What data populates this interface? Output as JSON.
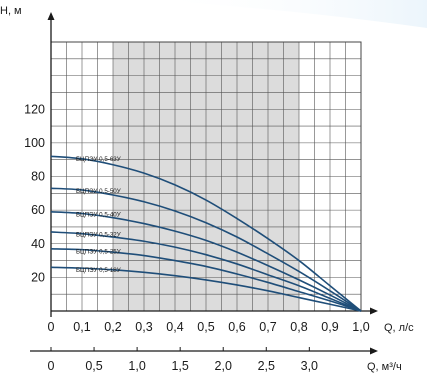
{
  "chart_data": {
    "type": "line",
    "ylabel": "H, м",
    "xlabel": "Q, л/с",
    "x2label": "Q, м³/ч",
    "xlim": [
      0,
      1.0
    ],
    "ylim": [
      0,
      160
    ],
    "x_ticks": [
      "0",
      "0,1",
      "0,2",
      "0,3",
      "0,4",
      "0,5",
      "0,6",
      "0,7",
      "0,8",
      "0,9",
      "1,0"
    ],
    "x_tick_values": [
      0,
      0.1,
      0.2,
      0.3,
      0.4,
      0.5,
      0.6,
      0.7,
      0.8,
      0.9,
      1.0
    ],
    "y_ticks": [
      "20",
      "40",
      "60",
      "80",
      "100",
      "120"
    ],
    "y_tick_values": [
      20,
      40,
      60,
      80,
      100,
      120
    ],
    "x2_ticks": [
      "0",
      "0,5",
      "1,0",
      "1,5",
      "2,0",
      "2,5",
      "3,0"
    ],
    "x2_tick_values": [
      0,
      0.5,
      1.0,
      1.5,
      2.0,
      2.5,
      3.0
    ],
    "x2_lim": [
      0,
      3.6
    ],
    "shaded_range": [
      0.2,
      0.8
    ],
    "grid": true,
    "series": [
      {
        "name": "БЦПЭУ 0,5-63У",
        "x": [
          0,
          0.1,
          0.2,
          0.3,
          0.4,
          0.5,
          0.6,
          0.7,
          0.8,
          0.9,
          1.0
        ],
        "y": [
          92,
          90.5,
          87,
          82,
          75,
          66,
          55,
          43,
          30,
          15,
          0
        ]
      },
      {
        "name": "БЦПЭУ 0,5-50У",
        "x": [
          0,
          0.1,
          0.2,
          0.3,
          0.4,
          0.5,
          0.6,
          0.7,
          0.8,
          0.9,
          1.0
        ],
        "y": [
          73,
          72,
          69,
          65,
          59.5,
          52.5,
          44,
          34,
          23.5,
          12,
          0
        ]
      },
      {
        "name": "БЦПЭУ 0,5-40У",
        "x": [
          0,
          0.1,
          0.2,
          0.3,
          0.4,
          0.5,
          0.6,
          0.7,
          0.8,
          0.9,
          1.0
        ],
        "y": [
          59,
          58,
          55.5,
          52,
          47.5,
          42,
          35,
          27,
          18.5,
          9.5,
          0
        ]
      },
      {
        "name": "БЦПЭУ 0,5-32У",
        "x": [
          0,
          0.1,
          0.2,
          0.3,
          0.4,
          0.5,
          0.6,
          0.7,
          0.8,
          0.9,
          1.0
        ],
        "y": [
          47,
          46,
          44,
          41.5,
          38,
          33.5,
          28,
          21.5,
          15,
          7.5,
          0
        ]
      },
      {
        "name": "БЦПЭУ 0,5-25У",
        "x": [
          0,
          0.1,
          0.2,
          0.3,
          0.4,
          0.5,
          0.6,
          0.7,
          0.8,
          0.9,
          1.0
        ],
        "y": [
          37,
          36.5,
          35,
          33,
          30,
          26.5,
          22,
          17,
          11.5,
          6,
          0
        ]
      },
      {
        "name": "БЦПЭУ 0,5-18У",
        "x": [
          0,
          0.1,
          0.2,
          0.3,
          0.4,
          0.5,
          0.6,
          0.7,
          0.8,
          0.9,
          1.0
        ],
        "y": [
          26,
          25.5,
          24.5,
          23,
          21,
          18.5,
          15.5,
          12,
          8,
          4,
          0
        ]
      }
    ],
    "colors": {
      "curve": "#1f4e79",
      "shade": "#dcdcdc",
      "grid": "#555555",
      "axis": "#1a1a1a",
      "top_accent": "#eaf4fb"
    }
  }
}
